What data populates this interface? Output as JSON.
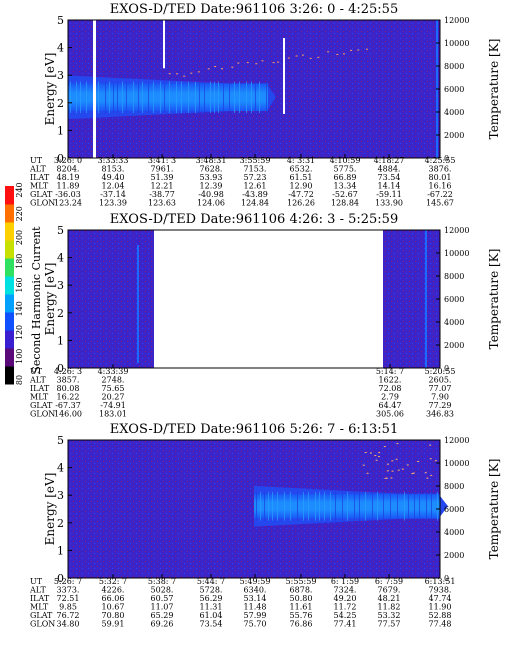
{
  "chart_data": [
    {
      "type": "heatmap",
      "title": "EXOS-D/TED   Date:961106  3:26: 0 - 4:25:55",
      "ylabel": "Energy [eV]",
      "ylabel_right": "Temperature [K]",
      "ylim": [
        0,
        5
      ],
      "ylim_right": [
        0,
        12000
      ],
      "yticks": [
        "0",
        "1",
        "2",
        "3",
        "4",
        "5"
      ],
      "yticks_right": [
        "0",
        "2000",
        "4000",
        "6000",
        "8000",
        "10000",
        "12000"
      ],
      "row_labels": [
        "UT",
        "ALT",
        "ILAT",
        "MLT",
        "GLAT",
        "GLON"
      ],
      "columns": [
        [
          "3:26: 0",
          "8204.",
          "48.19",
          "11.89",
          "-36.03",
          "123.24"
        ],
        [
          "3:33:33",
          "8153.",
          "49.40",
          "12.04",
          "-37.14",
          "123.39"
        ],
        [
          "3:41: 3",
          "7961.",
          "51.39",
          "12.21",
          "-38.77",
          "123.63"
        ],
        [
          "3:48:31",
          "7628.",
          "53.93",
          "12.39",
          "-40.98",
          "124.06"
        ],
        [
          "3:55:59",
          "7153.",
          "57.23",
          "12.61",
          "-43.89",
          "124.84"
        ],
        [
          "4: 3:31",
          "6532.",
          "61.51",
          "12.90",
          "-47.72",
          "126.26"
        ],
        [
          "4:10:59",
          "5775.",
          "66.89",
          "13.34",
          "-52.67",
          "128.84"
        ],
        [
          "4:18:27",
          "4884.",
          "73.54",
          "14.14",
          "-59.11",
          "133.90"
        ],
        [
          "4:25:55",
          "3876.",
          "80.01",
          "16.16",
          "-67.22",
          "145.67"
        ]
      ],
      "band": {
        "center_ev": 2.2,
        "half_width_ev": 0.5,
        "from_col": 0,
        "to_col": 4.3
      }
    },
    {
      "type": "heatmap",
      "title": "EXOS-D/TED   Date:961106  4:26: 3 - 5:25:59",
      "ylabel": "Energy [eV]",
      "ylabel_right": "Temperature [K]",
      "ylim": [
        0,
        5
      ],
      "ylim_right": [
        0,
        12000
      ],
      "yticks": [
        "0",
        "1",
        "2",
        "3",
        "4",
        "5"
      ],
      "yticks_right": [
        "0",
        "2000",
        "4000",
        "6000",
        "8000",
        "10000",
        "12000"
      ],
      "row_labels": [
        "UT",
        "ALT",
        "ILAT",
        "MLT",
        "GLAT",
        "GLON"
      ],
      "columns": [
        [
          "4:26: 3",
          "3857.",
          "80.08",
          "16.22",
          "-67.37",
          "146.00"
        ],
        [
          "4:33:39",
          "2748.",
          "75.65",
          "20.27",
          "-74.91",
          "183.01"
        ],
        [
          "5:14: 7",
          "1622.",
          "72.08",
          "2.79",
          "64.47",
          "305.06"
        ],
        [
          "5:20:55",
          "2605.",
          "77.07",
          "7.90",
          "77.29",
          "346.83"
        ]
      ],
      "data_ranges_ut": [
        [
          "4:26: 3",
          "4:33:39"
        ],
        [
          "5:14: 7",
          "5:25:59"
        ]
      ]
    },
    {
      "type": "heatmap",
      "title": "EXOS-D/TED   Date:961106  5:26: 7 - 6:13:51",
      "ylabel": "Energy [eV]",
      "ylabel_right": "Temperature [K]",
      "ylim": [
        0,
        5
      ],
      "ylim_right": [
        0,
        12000
      ],
      "yticks": [
        "0",
        "1",
        "2",
        "3",
        "4",
        "5"
      ],
      "yticks_right": [
        "0",
        "2000",
        "4000",
        "6000",
        "8000",
        "10000",
        "12000"
      ],
      "row_labels": [
        "UT",
        "ALT",
        "ILAT",
        "MLT",
        "GLAT",
        "GLON"
      ],
      "columns": [
        [
          "5:26: 7",
          "3373.",
          "72.51",
          "9.85",
          "76.72",
          "34.80"
        ],
        [
          "5:32: 7",
          "4226.",
          "66.06",
          "10.67",
          "70.80",
          "59.91"
        ],
        [
          "5:38: 7",
          "5028.",
          "60.57",
          "11.07",
          "65.29",
          "69.26"
        ],
        [
          "5:44: 7",
          "5728.",
          "56.29",
          "11.31",
          "61.04",
          "73.54"
        ],
        [
          "5:49:59",
          "6340.",
          "53.14",
          "11.48",
          "57.99",
          "75.70"
        ],
        [
          "5:55:59",
          "6878.",
          "50.80",
          "11.61",
          "55.76",
          "76.86"
        ],
        [
          "6: 1:59",
          "7324.",
          "49.20",
          "11.72",
          "54.25",
          "77.41"
        ],
        [
          "6: 7:59",
          "7679.",
          "48.21",
          "11.82",
          "53.32",
          "77.57"
        ],
        [
          "6:13:51",
          "7938.",
          "47.74",
          "11.90",
          "52.88",
          "77.48"
        ]
      ],
      "band": {
        "center_ev": 2.6,
        "half_width_ev": 0.45,
        "from_col": 4.0,
        "to_col": 8.0
      }
    }
  ],
  "colorbar": {
    "label": "Second Harmonic Current",
    "ticks": [
      "80",
      "100",
      "120",
      "140",
      "160",
      "180",
      "200",
      "220",
      "240"
    ],
    "colors": [
      "#000000",
      "#5a0a78",
      "#3a1fd0",
      "#1050ff",
      "#00a0ff",
      "#00e0e0",
      "#30e060",
      "#c8e000",
      "#ffd000",
      "#ff7000",
      "#ff1010"
    ]
  }
}
